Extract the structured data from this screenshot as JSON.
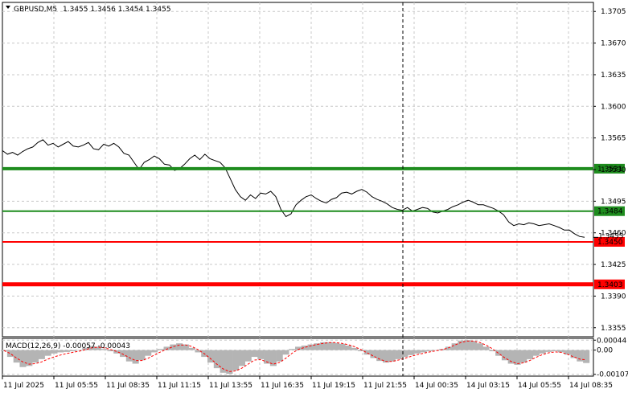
{
  "header": {
    "symbol": "GBPUSD,M5",
    "ohlc": "1.3455 1.3456 1.3454 1.3455"
  },
  "macd_header": "MACD(12,26,9) -0.00057 -0.00043",
  "colors": {
    "price_line": "#000000",
    "grid": "#c8c8c8",
    "resistance": "#1e8c1e",
    "support": "#ff0000",
    "histogram": "#b4b4b4",
    "signal": "#ff0000"
  },
  "chart_data": [
    {
      "type": "line",
      "name": "price",
      "y_ticks": [
        "1.3705",
        "1.3670",
        "1.3635",
        "1.3600",
        "1.3565",
        "1.3530",
        "1.3495",
        "1.3460",
        "1.3425",
        "1.3390",
        "1.3355"
      ],
      "ylim": [
        1.3345,
        1.3715
      ],
      "x_ticks": [
        "11 Jul 2025",
        "11 Jul 05:55",
        "11 Jul 08:35",
        "11 Jul 11:15",
        "11 Jul 13:55",
        "11 Jul 16:35",
        "11 Jul 19:15",
        "11 Jul 21:55",
        "14 Jul 00:35",
        "14 Jul 03:15",
        "14 Jul 05:55",
        "14 Jul 08:35"
      ],
      "x": [
        0,
        2,
        4,
        6,
        8,
        10,
        12,
        14,
        16,
        18,
        20,
        22,
        24,
        26,
        28,
        30,
        32,
        34,
        36,
        38,
        40,
        42,
        44,
        46,
        48,
        50,
        52,
        54,
        56,
        58,
        60,
        62,
        64,
        66,
        68,
        70,
        72,
        74,
        76,
        78,
        80,
        82,
        84,
        86,
        88,
        90,
        92,
        94,
        96,
        98,
        100,
        102,
        104,
        106,
        108,
        110,
        112,
        114,
        116,
        118,
        120,
        122,
        124,
        126,
        128,
        130,
        132,
        134,
        136,
        138,
        140,
        142,
        144,
        146,
        148,
        150,
        152,
        154,
        156,
        158,
        160,
        162,
        164,
        166,
        168,
        170,
        172,
        174,
        176,
        178,
        180,
        182,
        184,
        186,
        188,
        190,
        192,
        194,
        196,
        198,
        200,
        202,
        204,
        206,
        208,
        210,
        212,
        214,
        216,
        218,
        220,
        222,
        224,
        226,
        228,
        230
      ],
      "values": [
        1.3551,
        1.3547,
        1.3549,
        1.3546,
        1.355,
        1.3553,
        1.3555,
        1.356,
        1.3563,
        1.3557,
        1.3559,
        1.3555,
        1.3558,
        1.3561,
        1.3556,
        1.3555,
        1.3557,
        1.356,
        1.3553,
        1.3552,
        1.3558,
        1.3556,
        1.3559,
        1.3555,
        1.3548,
        1.3546,
        1.3538,
        1.353,
        1.3538,
        1.3541,
        1.3545,
        1.3542,
        1.3536,
        1.3535,
        1.3529,
        1.3531,
        1.3536,
        1.3542,
        1.3546,
        1.3541,
        1.3547,
        1.3542,
        1.354,
        1.3538,
        1.3532,
        1.352,
        1.3508,
        1.35,
        1.3496,
        1.3502,
        1.3498,
        1.3504,
        1.3503,
        1.3506,
        1.35,
        1.3486,
        1.3478,
        1.3481,
        1.3491,
        1.3496,
        1.35,
        1.3502,
        1.3498,
        1.3495,
        1.3493,
        1.3497,
        1.3499,
        1.3504,
        1.3505,
        1.3503,
        1.3506,
        1.3508,
        1.3505,
        1.35,
        1.3497,
        1.3495,
        1.3492,
        1.3488,
        1.3486,
        1.3485,
        1.3488,
        1.3484,
        1.3486,
        1.3488,
        1.3487,
        1.3483,
        1.3482,
        1.3484,
        1.3486,
        1.3489,
        1.3491,
        1.3494,
        1.3496,
        1.3494,
        1.3491,
        1.3491,
        1.3489,
        1.3487,
        1.3484,
        1.348,
        1.3472,
        1.3468,
        1.347,
        1.3469,
        1.3471,
        1.347,
        1.3468,
        1.3469,
        1.347,
        1.3468,
        1.3466,
        1.3463,
        1.3463,
        1.3459,
        1.3456,
        1.3455
      ],
      "levels": [
        {
          "label": "1.3531",
          "value": 1.3531,
          "color": "#1e8c1e"
        },
        {
          "label": "1.3484",
          "value": 1.3484,
          "color": "#1e8c1e"
        },
        {
          "label": "1.3450",
          "value": 1.345,
          "color": "#ff0000"
        },
        {
          "label": "1.3403",
          "value": 1.3403,
          "color": "#ff0000"
        }
      ],
      "current_price_label": "1.3455"
    },
    {
      "type": "bar",
      "name": "MACD(12,26,9)",
      "y_ticks": [
        "0.00044",
        "0.00",
        "-0.00107"
      ],
      "ylim": [
        -0.00115,
        0.00052
      ],
      "values": [
        -5e-05,
        -0.0003,
        -0.00055,
        -0.00075,
        -0.0007,
        -0.00055,
        -0.0004,
        -0.00025,
        -0.00015,
        -0.0001,
        -8e-05,
        -5e-05,
        0.0,
        0.0001,
        0.00018,
        0.00015,
        5e-05,
        -5e-05,
        -0.00015,
        -0.0003,
        -0.0005,
        -0.0006,
        -0.00045,
        -0.00025,
        -0.0001,
        5e-05,
        0.00015,
        0.00025,
        0.0003,
        0.00025,
        0.0001,
        -0.0001,
        -0.0003,
        -0.00055,
        -0.0008,
        -0.001,
        -0.00105,
        -0.0009,
        -0.0007,
        -0.0005,
        -0.0003,
        -0.0004,
        -0.0006,
        -0.0007,
        -0.0005,
        -0.0002,
        5e-05,
        0.00015,
        0.0002,
        0.00025,
        0.0003,
        0.00035,
        0.00035,
        0.00032,
        0.00028,
        0.0002,
        0.0001,
        -5e-05,
        -0.0002,
        -0.00035,
        -0.00048,
        -0.00055,
        -0.0005,
        -0.0004,
        -0.0003,
        -0.00022,
        -0.00015,
        -0.0001,
        -5e-05,
        0.0,
        5e-05,
        0.00015,
        0.0003,
        0.00042,
        0.00044,
        0.0004,
        0.0003,
        0.00015,
        -5e-05,
        -0.00025,
        -0.00045,
        -0.0006,
        -0.00065,
        -0.00055,
        -0.0004,
        -0.00025,
        -0.00015,
        -8e-05,
        -5e-05,
        -0.0001,
        -0.0002,
        -0.00035,
        -0.0005,
        -0.00057
      ],
      "signal": [
        -2e-05,
        -0.00015,
        -0.00035,
        -0.00052,
        -0.00062,
        -0.0006,
        -0.00052,
        -0.0004,
        -0.0003,
        -0.00022,
        -0.00015,
        -0.0001,
        -5e-05,
        2e-05,
        0.0001,
        0.00013,
        0.0001,
        3e-05,
        -6e-05,
        -0.00018,
        -0.00033,
        -0.00046,
        -0.00046,
        -0.00036,
        -0.00022,
        -8e-05,
        4e-05,
        0.00015,
        0.00022,
        0.00023,
        0.00016,
        2e-05,
        -0.00016,
        -0.00038,
        -0.00062,
        -0.00083,
        -0.00095,
        -0.00092,
        -0.0008,
        -0.00062,
        -0.00044,
        -0.00042,
        -0.00052,
        -0.00062,
        -0.00055,
        -0.00036,
        -0.00014,
        3e-05,
        0.00012,
        0.00019,
        0.00025,
        0.0003,
        0.00033,
        0.00033,
        0.0003,
        0.00024,
        0.00015,
        3e-05,
        -0.00012,
        -0.00026,
        -0.0004,
        -0.0005,
        -0.0005,
        -0.00044,
        -0.00036,
        -0.00028,
        -0.0002,
        -0.00014,
        -8e-05,
        -3e-05,
        2e-05,
        0.0001,
        0.00022,
        0.00034,
        0.0004,
        0.0004,
        0.00034,
        0.00022,
        6e-05,
        -0.00014,
        -0.00034,
        -0.0005,
        -0.0006,
        -0.00056,
        -0.00046,
        -0.00032,
        -0.0002,
        -0.00012,
        -8e-05,
        -0.0001,
        -0.00018,
        -0.0003,
        -0.0004,
        -0.00043
      ]
    }
  ]
}
